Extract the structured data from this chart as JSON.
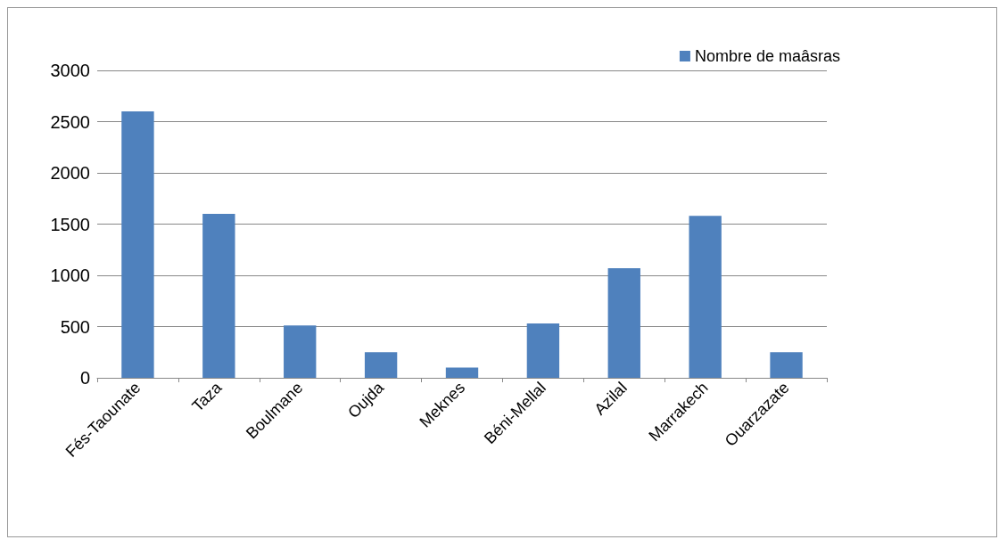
{
  "chart_data": {
    "type": "bar",
    "categories": [
      "Fés-Taounate",
      "Taza",
      "Boulmane",
      "Oujda",
      "Meknes",
      "Béni-Mellal",
      "Azilal",
      "Marrakech",
      "Ouarzazate"
    ],
    "series": [
      {
        "name": "Nombre de maâsras",
        "color": "#4f81bd",
        "values": [
          2600,
          1600,
          510,
          250,
          100,
          530,
          1070,
          1580,
          250
        ]
      }
    ],
    "ylim": [
      0,
      3000
    ],
    "yticks": [
      0,
      500,
      1000,
      1500,
      2000,
      2500,
      3000
    ],
    "grid": "y",
    "legend": "top right"
  }
}
